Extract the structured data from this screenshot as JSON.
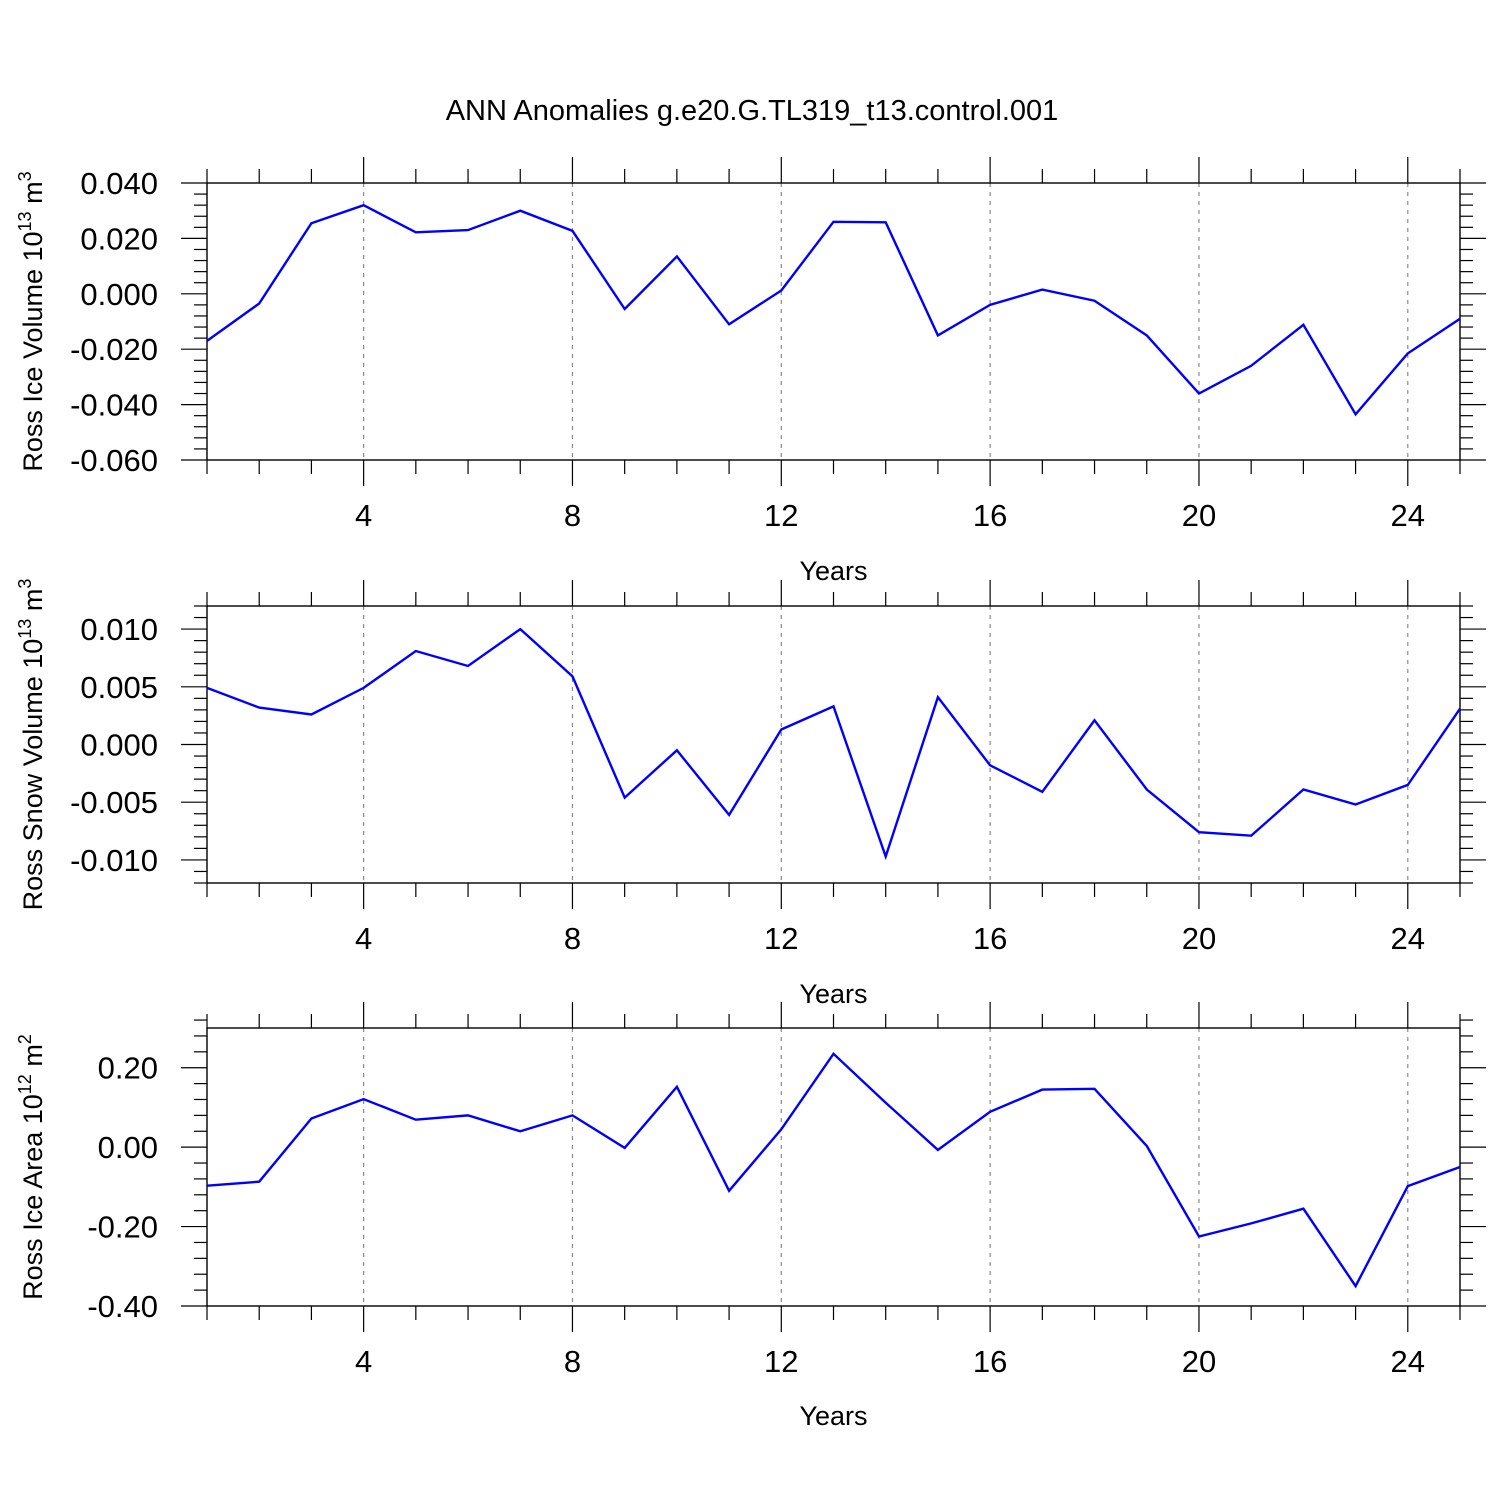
{
  "title": "ANN Anomalies g.e20.G.TL319_t13.control.001",
  "chart_data": [
    {
      "type": "line",
      "xlabel": "Years",
      "ylabel": "Ross Ice Volume 10",
      "ylabel_sup": "13",
      "ylabel_unit": "m",
      "ylabel_unit_sup": "3",
      "xlim": [
        1,
        25
      ],
      "ylim": [
        -0.06,
        0.04
      ],
      "xticks": [
        4,
        8,
        12,
        16,
        20,
        24
      ],
      "xtick_labels": [
        "4",
        "8",
        "12",
        "16",
        "20",
        "24"
      ],
      "yticks": [
        -0.06,
        -0.04,
        -0.02,
        0.0,
        0.02,
        0.04
      ],
      "ytick_labels": [
        "-0.060",
        "-0.040",
        "-0.020",
        "0.000",
        "0.020",
        "0.040"
      ],
      "grid": "vertical dashed at major x ticks",
      "x": [
        1,
        2,
        3,
        4,
        5,
        6,
        7,
        8,
        9,
        10,
        11,
        12,
        13,
        14,
        15,
        16,
        17,
        18,
        19,
        20,
        21,
        22,
        23,
        24,
        25
      ],
      "values": [
        -0.017,
        -0.0035,
        0.0255,
        0.032,
        0.0222,
        0.023,
        0.03,
        0.0227,
        -0.0055,
        0.0135,
        -0.011,
        0.0012,
        0.026,
        0.0258,
        -0.015,
        -0.004,
        0.0015,
        -0.0025,
        -0.015,
        -0.036,
        -0.026,
        -0.0112,
        -0.0435,
        -0.0215,
        -0.009
      ],
      "color": "#0000ff"
    },
    {
      "type": "line",
      "xlabel": "Years",
      "ylabel": "Ross Snow Volume 10",
      "ylabel_sup": "13",
      "ylabel_unit": "m",
      "ylabel_unit_sup": "3",
      "xlim": [
        1,
        25
      ],
      "ylim": [
        -0.012,
        0.012
      ],
      "xticks": [
        4,
        8,
        12,
        16,
        20,
        24
      ],
      "xtick_labels": [
        "4",
        "8",
        "12",
        "16",
        "20",
        "24"
      ],
      "yticks": [
        -0.01,
        -0.005,
        0.0,
        0.005,
        0.01
      ],
      "ytick_labels": [
        "-0.010",
        "-0.005",
        "0.000",
        "0.005",
        "0.010"
      ],
      "grid": "vertical dashed at major x ticks",
      "x": [
        1,
        2,
        3,
        4,
        5,
        6,
        7,
        8,
        9,
        10,
        11,
        12,
        13,
        14,
        15,
        16,
        17,
        18,
        19,
        20,
        21,
        22,
        23,
        24,
        25
      ],
      "values": [
        0.0049,
        0.0032,
        0.0026,
        0.0049,
        0.0081,
        0.0068,
        0.01,
        0.0059,
        -0.0046,
        -0.0005,
        -0.0061,
        0.0013,
        0.0033,
        -0.0097,
        0.0041,
        -0.0018,
        -0.0041,
        0.0021,
        -0.0039,
        -0.0076,
        -0.0079,
        -0.0039,
        -0.0052,
        -0.0035,
        0.0031
      ],
      "color": "#0000ff"
    },
    {
      "type": "line",
      "xlabel": "Years",
      "ylabel": "Ross Ice Area 10",
      "ylabel_sup": "12",
      "ylabel_unit": "m",
      "ylabel_unit_sup": "2",
      "xlim": [
        1,
        25
      ],
      "ylim": [
        -0.4,
        0.3
      ],
      "xticks": [
        4,
        8,
        12,
        16,
        20,
        24
      ],
      "xtick_labels": [
        "4",
        "8",
        "12",
        "16",
        "20",
        "24"
      ],
      "yticks": [
        -0.4,
        -0.2,
        0.0,
        0.2
      ],
      "ytick_labels": [
        "-0.40",
        "-0.20",
        "0.00",
        "0.20"
      ],
      "grid": "vertical dashed at major x ticks",
      "x": [
        1,
        2,
        3,
        4,
        5,
        6,
        7,
        8,
        9,
        10,
        11,
        12,
        13,
        14,
        15,
        16,
        17,
        18,
        19,
        20,
        21,
        22,
        23,
        24,
        25
      ],
      "values": [
        -0.097,
        -0.087,
        0.072,
        0.121,
        0.069,
        0.08,
        0.04,
        0.08,
        -0.002,
        0.152,
        -0.11,
        0.045,
        0.235,
        0.112,
        -0.007,
        0.089,
        0.145,
        0.147,
        0.003,
        -0.225,
        -0.192,
        -0.155,
        -0.35,
        -0.098,
        -0.05
      ],
      "color": "#0000ff"
    }
  ]
}
